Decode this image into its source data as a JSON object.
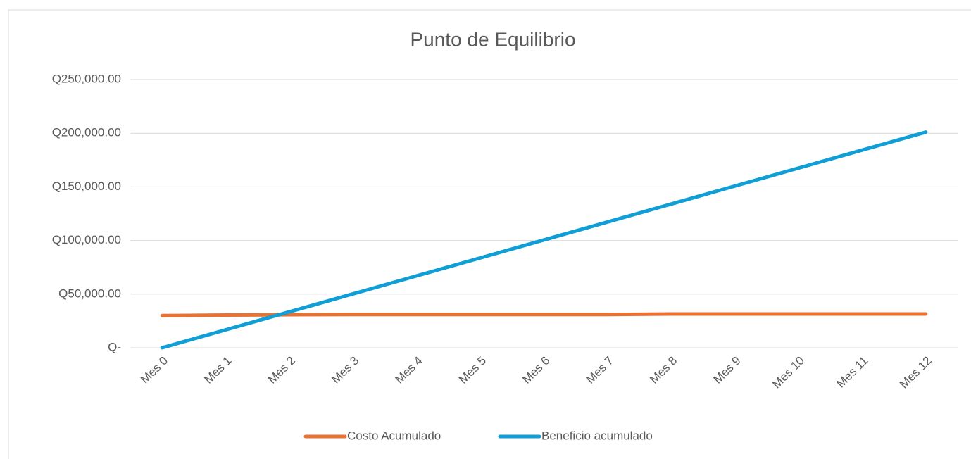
{
  "chart_data": {
    "type": "line",
    "title": "Punto de Equilibrio",
    "categories": [
      "Mes 0",
      "Mes 1",
      "Mes 2",
      "Mes 3",
      "Mes 4",
      "Mes 5",
      "Mes 6",
      "Mes 7",
      "Mes 8",
      "Mes 9",
      "Mes 10",
      "Mes 11",
      "Mes 12"
    ],
    "series": [
      {
        "name": "Costo Acumulado",
        "color": "#E97132",
        "values": [
          30000,
          30500,
          30800,
          31000,
          31000,
          31000,
          31000,
          31000,
          31500,
          31500,
          31500,
          31500,
          31500
        ]
      },
      {
        "name": "Beneficio acumulado",
        "color": "#0F9ED5",
        "values": [
          0,
          16750,
          33500,
          50250,
          67000,
          83750,
          100500,
          117250,
          134000,
          150750,
          167500,
          184250,
          201000
        ]
      }
    ],
    "ylim": [
      0,
      250000
    ],
    "yticks": [
      {
        "value": 0,
        "label": "Q-"
      },
      {
        "value": 50000,
        "label": "Q50,000.00"
      },
      {
        "value": 100000,
        "label": "Q100,000.00"
      },
      {
        "value": 150000,
        "label": "Q150,000.00"
      },
      {
        "value": 200000,
        "label": "Q200,000.00"
      },
      {
        "value": 250000,
        "label": "Q250,000.00"
      }
    ],
    "grid": true,
    "legend": "bottom"
  }
}
